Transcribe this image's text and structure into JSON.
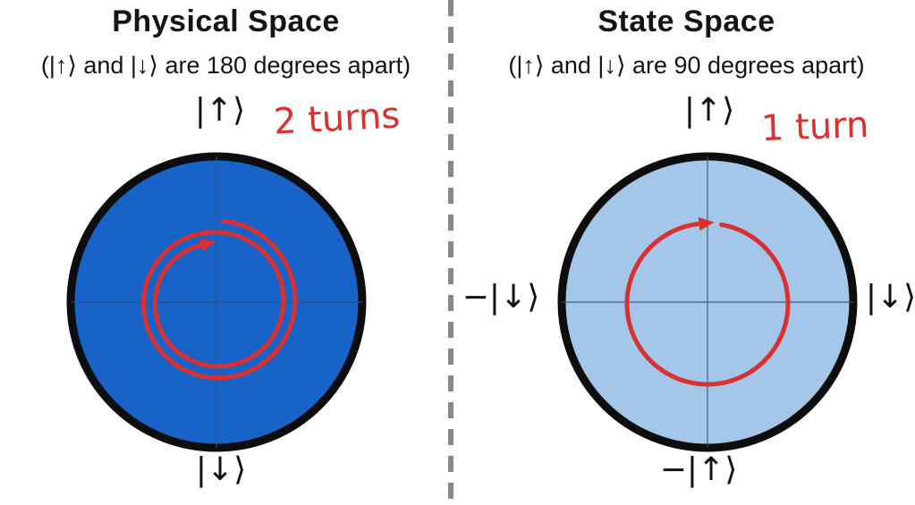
{
  "colors": {
    "left_circle_fill": "#1763C8",
    "right_circle_fill": "#A4C7E9",
    "circle_border": "#0D0D0D",
    "annotation_red": "#D93030",
    "divider_gray": "#8A8A8A",
    "text_black": "#141414"
  },
  "left_panel": {
    "title": "Physical Space",
    "subtitle": "(|↑⟩ and |↓⟩ are 180 degrees apart)",
    "top_label": "|↑⟩",
    "bottom_label": "|↓⟩",
    "annotation": "2 turns"
  },
  "right_panel": {
    "title": "State Space",
    "subtitle": "(|↑⟩ and |↓⟩ are 90 degrees apart)",
    "top_label": "|↑⟩",
    "left_label": "−|↓⟩",
    "right_label": "|↓⟩",
    "bottom_label": "−|↑⟩",
    "annotation": "1 turn"
  }
}
